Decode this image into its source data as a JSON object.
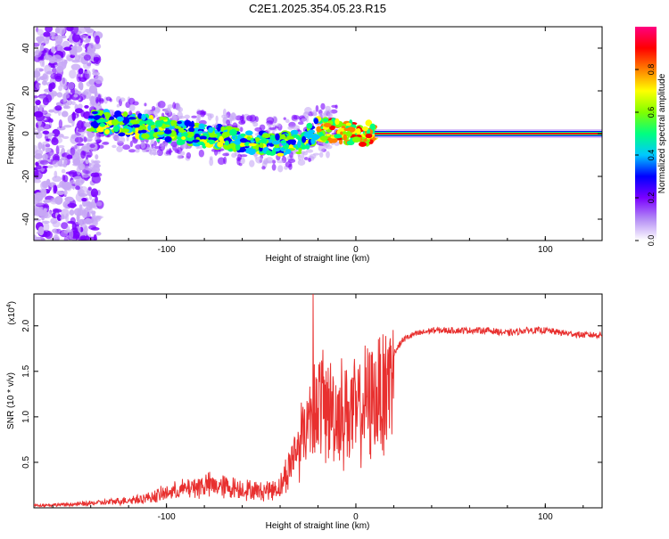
{
  "title": "C2E1.2025.354.05.23.R15",
  "chart_data": [
    {
      "type": "heatmap",
      "xlabel": "Height of straight line (km)",
      "ylabel": "Frequency (Hz)",
      "xlim": [
        -170,
        130
      ],
      "ylim": [
        -50,
        50
      ],
      "x_ticks": [
        -100,
        0,
        100
      ],
      "y_ticks": [
        -40,
        -20,
        0,
        20,
        40
      ],
      "colorbar": {
        "label": "Normalized spectral amplitude",
        "range": [
          0,
          1
        ],
        "ticks": [
          0.0,
          0.2,
          0.4,
          0.6,
          0.8
        ],
        "colors": [
          "#ffffff",
          "#b48cf5",
          "#7a00ff",
          "#0000ff",
          "#00c8ff",
          "#00ff80",
          "#80ff00",
          "#ffff00",
          "#ff8000",
          "#ff0000",
          "#ff0080"
        ]
      },
      "ridge": {
        "x": [
          -140,
          -120,
          -100,
          -80,
          -60,
          -40,
          -30,
          -20,
          -10,
          0,
          10,
          20,
          40,
          60,
          80,
          100,
          130
        ],
        "y": [
          6,
          4,
          2,
          -1,
          -3,
          -5,
          -4,
          2,
          1,
          0,
          0,
          0,
          0,
          0,
          0,
          0,
          0
        ]
      }
    },
    {
      "type": "line",
      "xlabel": "Height of straight line (km)",
      "ylabel": "SNR (10 * v/v)",
      "multiplier": "(x10",
      "multiplier_exp": "4",
      "xlim": [
        -170,
        130
      ],
      "ylim": [
        0,
        23500
      ],
      "x_ticks": [
        -100,
        0,
        100
      ],
      "y_tick_labels": [
        "0.5",
        "1.0",
        "1.5",
        "2.0"
      ],
      "y_ticks": [
        5000,
        10000,
        15000,
        20000
      ],
      "color": "#e8302f",
      "envelope": {
        "x": [
          -170,
          -150,
          -130,
          -110,
          -100,
          -90,
          -80,
          -70,
          -60,
          -50,
          -40,
          -35,
          -30,
          -25,
          -20,
          -15,
          -10,
          -5,
          0,
          5,
          10,
          15,
          20,
          25,
          30,
          40,
          50,
          60,
          70,
          80,
          90,
          100,
          110,
          120,
          130
        ],
        "y": [
          300,
          400,
          700,
          1200,
          1800,
          2300,
          2800,
          2600,
          2300,
          2000,
          2500,
          5000,
          8000,
          11000,
          13000,
          12000,
          11500,
          12000,
          11500,
          12500,
          13500,
          15000,
          17000,
          18500,
          19000,
          19500,
          19500,
          19500,
          19500,
          19200,
          19500,
          19500,
          19200,
          19000,
          19000
        ]
      }
    }
  ]
}
